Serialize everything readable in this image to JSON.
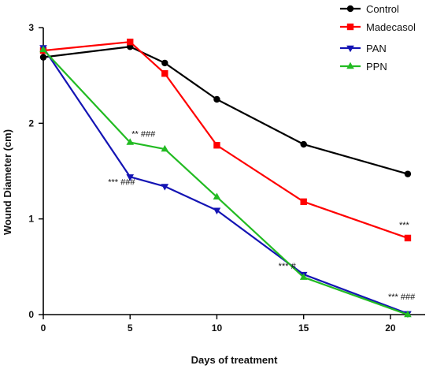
{
  "chart_data": {
    "type": "line",
    "xlabel": "Days of treatment",
    "ylabel": "Wound Diameter (cm)",
    "xlim": [
      0,
      22
    ],
    "ylim": [
      0,
      3
    ],
    "xticks": [
      0,
      5,
      10,
      15,
      20
    ],
    "yticks": [
      0,
      1,
      2,
      3
    ],
    "grid": false,
    "legend_position": "top-right",
    "series": [
      {
        "name": "Control",
        "color": "#000000",
        "marker": "circle",
        "x": [
          0,
          5,
          7,
          10,
          15,
          21
        ],
        "y": [
          2.69,
          2.8,
          2.63,
          2.25,
          1.78,
          1.47
        ]
      },
      {
        "name": "Madecasol",
        "color": "#ff0000",
        "marker": "square",
        "x": [
          0,
          5,
          7,
          10,
          15,
          21
        ],
        "y": [
          2.76,
          2.85,
          2.52,
          1.77,
          1.18,
          0.8
        ]
      },
      {
        "name": "PAN",
        "color": "#1414b4",
        "marker": "triangle-down",
        "x": [
          0,
          5,
          7,
          10,
          15,
          21
        ],
        "y": [
          2.79,
          1.44,
          1.34,
          1.09,
          0.42,
          0.01
        ]
      },
      {
        "name": "PPN",
        "color": "#22bb22",
        "marker": "triangle-up",
        "x": [
          0,
          5,
          7,
          10,
          15,
          21
        ],
        "y": [
          2.77,
          1.8,
          1.73,
          1.23,
          0.39,
          0.0
        ]
      }
    ],
    "annotations": [
      {
        "text": "** ###",
        "x": 5,
        "y": 1.8
      },
      {
        "text": "*** ###",
        "x": 5,
        "y": 1.44
      },
      {
        "text": "***",
        "x": 21,
        "y": 0.8
      },
      {
        "text": "*** #",
        "x": 15,
        "y": 0.42
      },
      {
        "text": "*** ###",
        "x": 21,
        "y": 0.01
      }
    ]
  }
}
